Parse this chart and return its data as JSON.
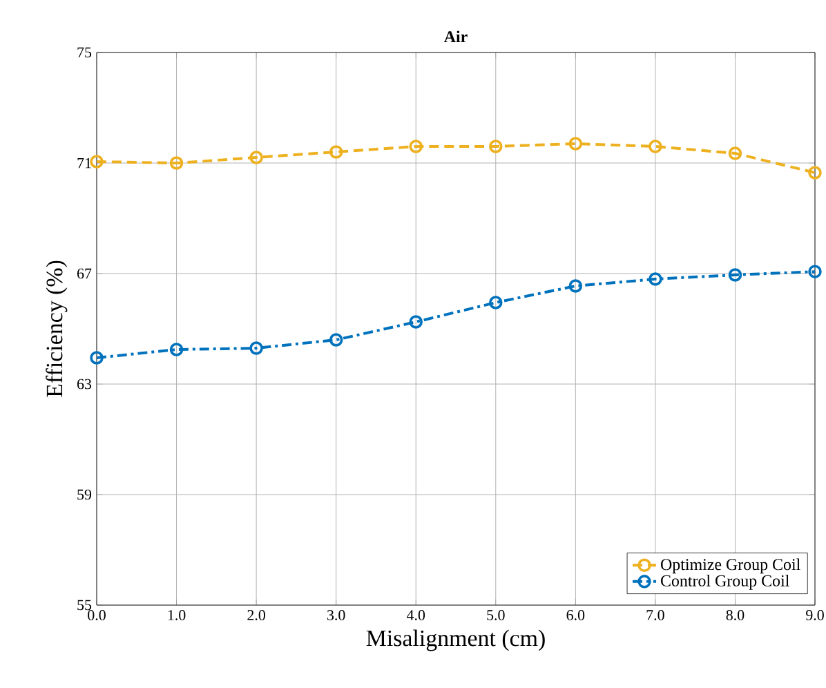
{
  "chart_data": {
    "type": "line",
    "title": "Air",
    "xlabel": "Misalignment (cm)",
    "ylabel": "Efficiency (%)",
    "x": [
      0,
      1,
      2,
      3,
      4,
      5,
      6,
      7,
      8,
      9
    ],
    "series": [
      {
        "name": "Optimize Group Coil",
        "color": "#edb120",
        "line_style": "dashed",
        "values": [
          71.05,
          71.0,
          71.2,
          71.4,
          71.6,
          71.6,
          71.7,
          71.6,
          71.35,
          70.65
        ]
      },
      {
        "name": "Control Group Coil",
        "color": "#0072bd",
        "line_style": "dashdot",
        "values": [
          63.95,
          64.25,
          64.3,
          64.6,
          65.25,
          65.95,
          66.55,
          66.8,
          66.95,
          67.07
        ]
      }
    ],
    "xlim": [
      0,
      9
    ],
    "ylim": [
      55,
      75
    ],
    "xticks": [
      {
        "value": 0,
        "label": "0.0"
      },
      {
        "value": 1,
        "label": "1.0"
      },
      {
        "value": 2,
        "label": "2.0"
      },
      {
        "value": 3,
        "label": "3.0"
      },
      {
        "value": 4,
        "label": "4.0"
      },
      {
        "value": 5,
        "label": "5.0"
      },
      {
        "value": 6,
        "label": "6.0"
      },
      {
        "value": 7,
        "label": "7.0"
      },
      {
        "value": 8,
        "label": "8.0"
      },
      {
        "value": 9,
        "label": "9.0"
      }
    ],
    "yticks": [
      55,
      59,
      63,
      67,
      71,
      75
    ],
    "grid": true,
    "legend": "bottom right",
    "marker": "circle"
  }
}
